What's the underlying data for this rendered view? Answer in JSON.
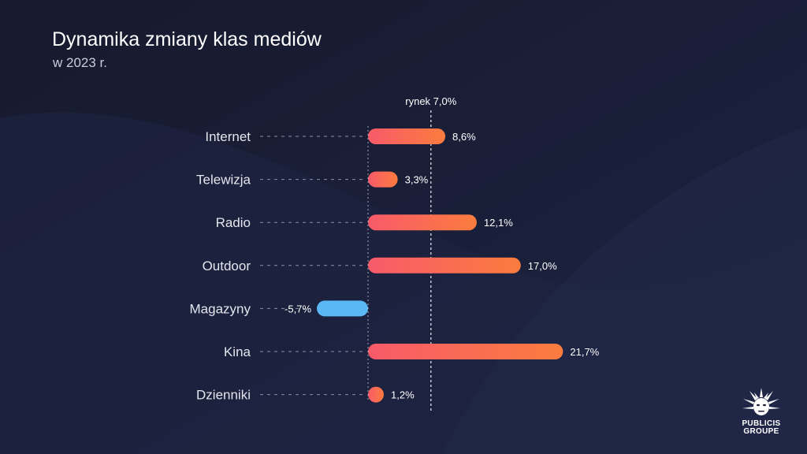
{
  "header": {
    "title": "Dynamika zmiany klas mediów",
    "subtitle": "w 2023 r."
  },
  "colors": {
    "background": "#191d33",
    "positive_start": "#f85a6a",
    "positive_end": "#fb7c3e",
    "negative": "#5ab8f5",
    "guide": "#8b8fa6"
  },
  "chart_data": {
    "type": "bar",
    "orientation": "horizontal",
    "categories": [
      "Internet",
      "Telewizja",
      "Radio",
      "Outdoor",
      "Magazyny",
      "Kina",
      "Dzienniki"
    ],
    "values": [
      8.6,
      3.3,
      12.1,
      17.0,
      -5.7,
      21.7,
      1.2
    ],
    "value_labels": [
      "8,6%",
      "3,3%",
      "12,1%",
      "17,0%",
      "-5,7%",
      "21,7%",
      "1,2%"
    ],
    "unit": "%",
    "reference_line": {
      "value": 7.0,
      "label": "rynek 7,0%"
    },
    "title": "Dynamika zmiany klas mediów",
    "subtitle": "w 2023 r.",
    "grid": false,
    "legend": "none"
  },
  "logo": {
    "icon": "sun-face-icon",
    "line1": "PUBLICIS",
    "line2": "GROUPE"
  }
}
